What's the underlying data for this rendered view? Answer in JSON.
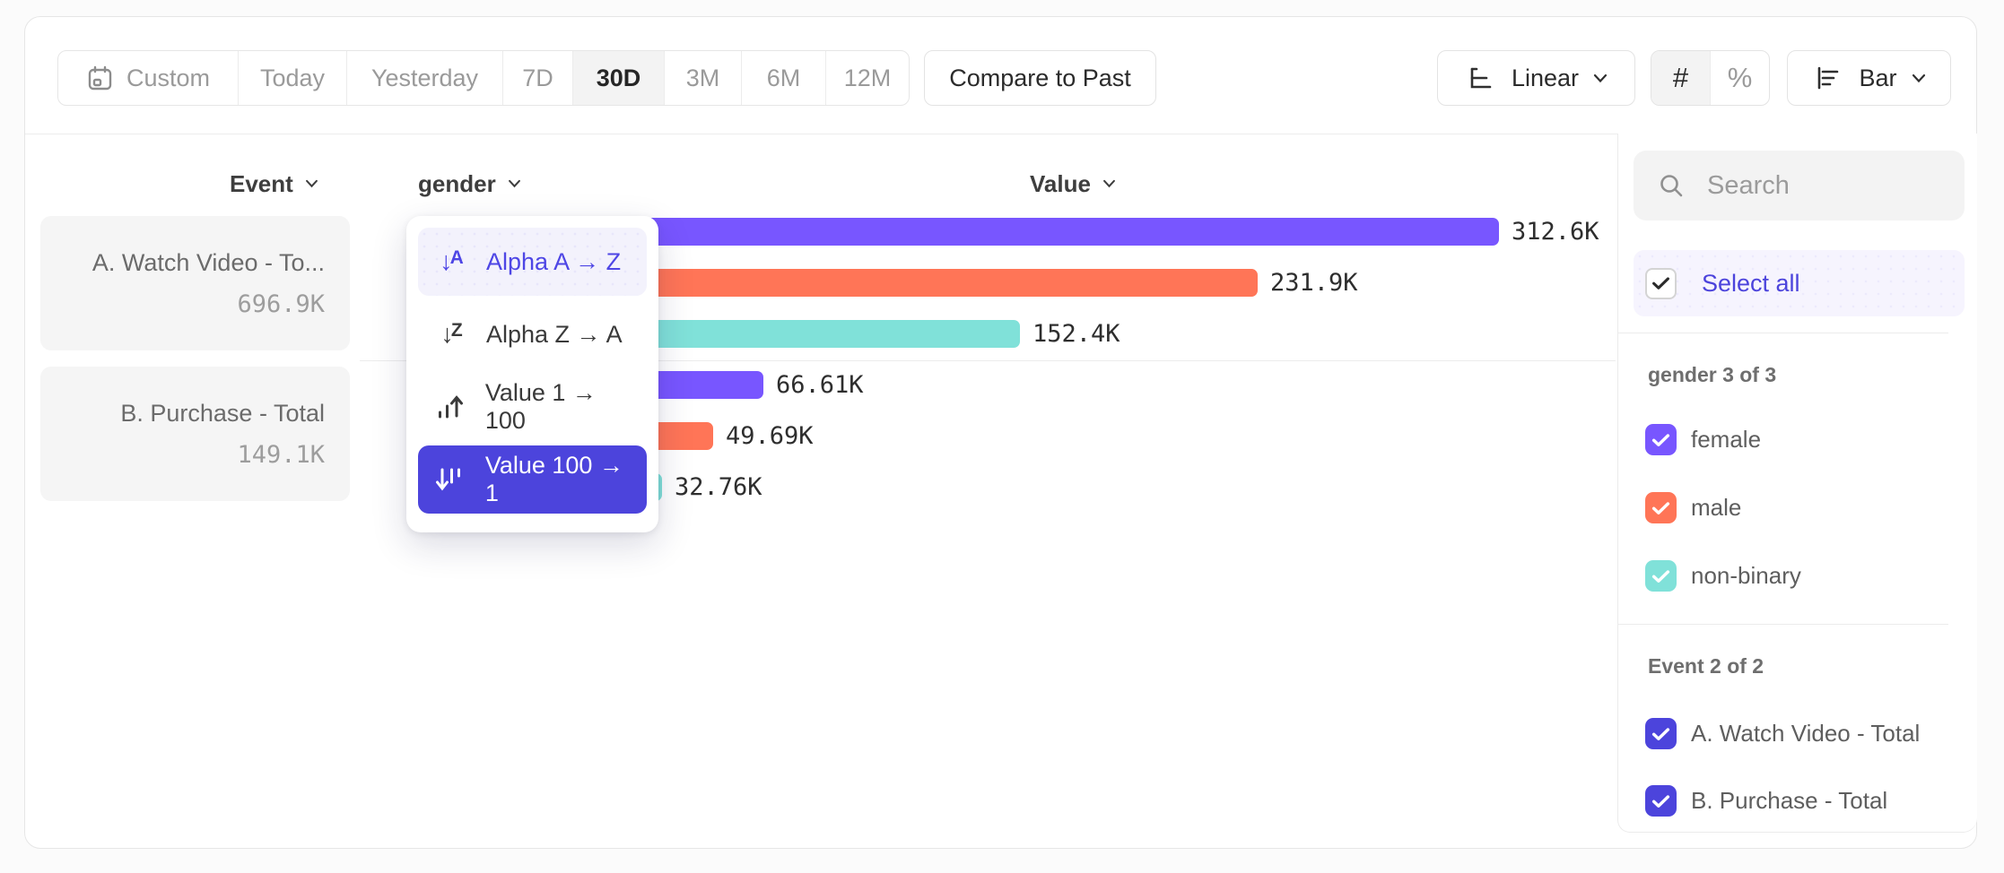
{
  "toolbar": {
    "date_presets": [
      {
        "label": "Custom",
        "icon": "calendar-icon",
        "selected": false
      },
      {
        "label": "Today",
        "selected": false
      },
      {
        "label": "Yesterday",
        "selected": false
      },
      {
        "label": "7D",
        "selected": false
      },
      {
        "label": "30D",
        "selected": true
      },
      {
        "label": "3M",
        "selected": false
      },
      {
        "label": "6M",
        "selected": false
      },
      {
        "label": "12M",
        "selected": false
      }
    ],
    "compare_button": "Compare to Past",
    "scale_selector": {
      "label": "Linear",
      "icon": "linear-scale-icon"
    },
    "value_format_toggle": {
      "options": [
        "#",
        "%"
      ],
      "selected": "#"
    },
    "chart_type_selector": {
      "label": "Bar",
      "icon": "bar-chart-icon"
    }
  },
  "chart_header": {
    "event_column": "Event",
    "breakdown_column": "gender",
    "value_column": "Value"
  },
  "sort_menu": {
    "items": [
      {
        "label": "Alpha A → Z",
        "icon": "sort-alpha-asc-icon",
        "state": "hover"
      },
      {
        "label": "Alpha Z → A",
        "icon": "sort-alpha-desc-icon",
        "state": "normal"
      },
      {
        "label": "Value 1 → 100",
        "icon": "sort-value-asc-icon",
        "state": "normal"
      },
      {
        "label": "Value 100 → 1",
        "icon": "sort-value-desc-icon",
        "state": "selected"
      }
    ]
  },
  "chart_data": {
    "type": "bar",
    "orientation": "horizontal",
    "value_axis_max": 312600,
    "sort": "Value 100 → 1",
    "groups": [
      {
        "event": "A. Watch Video - Total",
        "card_label": "A. Watch Video - To...",
        "total_label": "696.9K",
        "bars": [
          {
            "category": "female",
            "value": 312600,
            "label": "312.6K",
            "color": "#7856FF"
          },
          {
            "category": "male",
            "value": 231900,
            "label": "231.9K",
            "color": "#FF7557"
          },
          {
            "category": "non-binary",
            "value": 152400,
            "label": "152.4K",
            "color": "#80E1D9"
          }
        ]
      },
      {
        "event": "B. Purchase - Total",
        "card_label": "B. Purchase - Total",
        "total_label": "149.1K",
        "bars": [
          {
            "category": "female",
            "value": 66610,
            "label": "66.61K",
            "color": "#7856FF"
          },
          {
            "category": "male",
            "value": 49690,
            "label": "49.69K",
            "color": "#FF7557"
          },
          {
            "category": "non-binary",
            "value": 32760,
            "label": "32.76K",
            "color": "#80E1D9"
          }
        ]
      }
    ]
  },
  "legend": {
    "search_placeholder": "Search",
    "select_all_label": "Select all",
    "sections": [
      {
        "title": "gender 3 of 3",
        "items": [
          {
            "label": "female",
            "checked": true,
            "color": "#7856FF"
          },
          {
            "label": "male",
            "checked": true,
            "color": "#FF7557"
          },
          {
            "label": "non-binary",
            "checked": true,
            "color": "#80E1D9"
          }
        ]
      },
      {
        "title": "Event 2 of 2",
        "items": [
          {
            "label": "A. Watch Video - Total",
            "checked": true,
            "color": "#4C44DC"
          },
          {
            "label": "B. Purchase - Total",
            "checked": true,
            "color": "#4C44DC"
          }
        ]
      }
    ]
  },
  "colors": {
    "accent": "#4C44DC",
    "hover_text": "#4E46E5",
    "series_purple": "#7856FF",
    "series_orange": "#FF7557",
    "series_teal": "#80E1D9"
  }
}
